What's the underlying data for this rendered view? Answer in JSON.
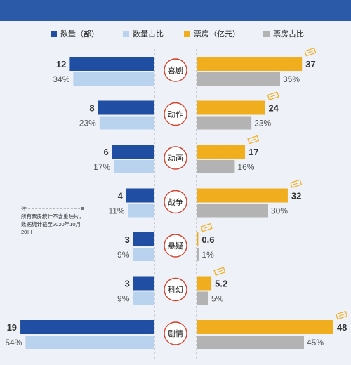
{
  "legend": [
    {
      "label": "数量（部）",
      "color": "#1f4ea3"
    },
    {
      "label": "数量占比",
      "color": "#b9d2ee"
    },
    {
      "label": "票房（亿元）",
      "color": "#f0ad1e"
    },
    {
      "label": "票房占比",
      "color": "#b3b3b3"
    }
  ],
  "note": {
    "title": "注",
    "text": "所有票房统计不含重映片，数据统计截至2020年10月20日"
  },
  "chart_data": {
    "type": "bar",
    "categories": [
      "喜剧",
      "动作",
      "动画",
      "战争",
      "悬疑",
      "科幻",
      "剧情"
    ],
    "series": [
      {
        "name": "数量（部）",
        "values": [
          12,
          8,
          6,
          4,
          3,
          3,
          19
        ],
        "labels": [
          "12",
          "8",
          "6",
          "4",
          "3",
          "3",
          "19"
        ]
      },
      {
        "name": "数量占比",
        "values": [
          34,
          23,
          17,
          11,
          9,
          9,
          54
        ],
        "labels": [
          "34%",
          "23%",
          "17%",
          "11%",
          "9%",
          "9%",
          "54%"
        ]
      },
      {
        "name": "票房（亿元）",
        "values": [
          37,
          24,
          17,
          32,
          0.6,
          5.2,
          48
        ],
        "labels": [
          "37",
          "24",
          "17",
          "32",
          "0.6",
          "5.2",
          "48"
        ]
      },
      {
        "name": "票房占比",
        "values": [
          35,
          23,
          16,
          30,
          1,
          5,
          45
        ],
        "labels": [
          "35%",
          "23%",
          "16%",
          "30%",
          "1%",
          "5%",
          "45%"
        ]
      }
    ],
    "colors": {
      "count": "#1f4ea3",
      "count_pct": "#b9d2ee",
      "box": "#f0ad1e",
      "box_pct": "#b3b3b3",
      "accent": "#d4402b"
    }
  }
}
